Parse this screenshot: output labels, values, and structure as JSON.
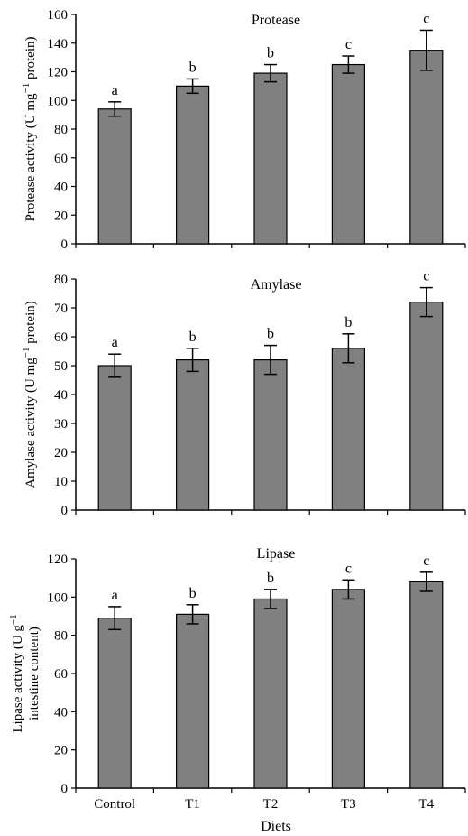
{
  "chart_data": [
    {
      "type": "bar",
      "title": "Protease",
      "ylabel_line1": "Protease activity (U mg",
      "ylabel_sup": "−1",
      "ylabel_line1_end": " protein)",
      "categories": [
        "Control",
        "T1",
        "T2",
        "T3",
        "T4"
      ],
      "values": [
        94,
        110,
        119,
        125,
        135
      ],
      "errors": [
        5,
        5,
        6,
        6,
        14
      ],
      "significance": [
        "a",
        "b",
        "b",
        "c",
        "c"
      ],
      "ylim": [
        0,
        160
      ],
      "yticks": [
        0,
        20,
        40,
        60,
        80,
        100,
        120,
        140,
        160
      ],
      "color": "#808080"
    },
    {
      "type": "bar",
      "title": "Amylase",
      "ylabel_line1": "Amylase activity (U mg",
      "ylabel_sup": "−1",
      "ylabel_line1_end": " protein)",
      "categories": [
        "Control",
        "T1",
        "T2",
        "T3",
        "T4"
      ],
      "values": [
        50,
        52,
        52,
        56,
        72
      ],
      "errors": [
        4,
        4,
        5,
        5,
        5
      ],
      "significance": [
        "a",
        "b",
        "b",
        "b",
        "c"
      ],
      "ylim": [
        0,
        80
      ],
      "yticks": [
        0,
        10,
        20,
        30,
        40,
        50,
        60,
        70,
        80
      ],
      "color": "#808080"
    },
    {
      "type": "bar",
      "title": "Lipase",
      "ylabel_line1": "Lipase activity (U g",
      "ylabel_sup": "−1",
      "ylabel_line2": "intestine content)",
      "categories": [
        "Control",
        "T1",
        "T2",
        "T3",
        "T4"
      ],
      "values": [
        89,
        91,
        99,
        104,
        108
      ],
      "errors": [
        6,
        5,
        5,
        5,
        5
      ],
      "significance": [
        "a",
        "b",
        "b",
        "c",
        "c"
      ],
      "ylim": [
        0,
        120
      ],
      "yticks": [
        0,
        20,
        40,
        60,
        80,
        100,
        120
      ],
      "color": "#808080",
      "xlabel": "Diets"
    }
  ]
}
